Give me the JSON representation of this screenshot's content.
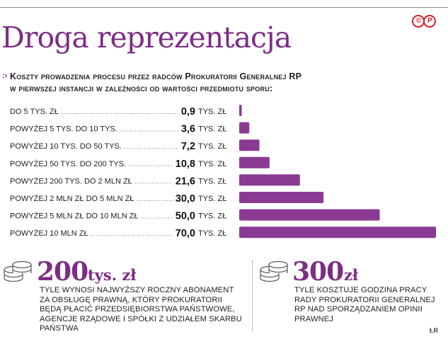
{
  "header": {
    "title": "Droga reprezentacja",
    "logo": "©P",
    "subtitle_line1": "Koszty prowadzenia procesu przez radców Prokuratorii Generalnej RP",
    "subtitle_line2": "w pierwszej instancji w zależności od wartości przedmiotu sporu:",
    "subtitle_icon": ":›"
  },
  "chart_data": {
    "type": "bar",
    "orientation": "horizontal",
    "categories": [
      "DO 5 TYS. ZŁ",
      "POWYŻEJ 5 TYS. DO 10 TYS.",
      "POWYŻEJ 10 TYS. DO 50 TYS.",
      "POWYŻEJ 50 TYS. DO 200 TYS.",
      "POWYŻEJ 200 TYS. DO 2 MLN ZŁ",
      "POWYŻEJ 2 MLN ZŁ DO 5 MLN ZŁ",
      "POWYŻEJ 5 MLN ZŁ DO 10 MLN ZŁ",
      "POWYŻEJ 10 MLN ZŁ"
    ],
    "values": [
      0.9,
      3.6,
      7.2,
      10.8,
      21.6,
      30.0,
      50.0,
      70.0
    ],
    "value_labels": [
      "0,9",
      "3,6",
      "7,2",
      "10,8",
      "21,6",
      "30,0",
      "50,0",
      "70,0"
    ],
    "unit": "TYS. ZŁ",
    "xlim": [
      0,
      70
    ],
    "bar_color": "#8a3a93"
  },
  "stats": [
    {
      "number": "200",
      "unit": "tys. zł",
      "desc_lines": [
        "TYLE WYNOSI NAJWYŻSZY ROCZNY ABONAMENT",
        "ZA OBSŁUGĘ PRAWNĄ, KTÓRY PROKURATORII",
        "BĘDĄ PŁACIĆ PRZEDSIĘBIORSTWA PAŃSTWOWE,",
        "AGENCJE RZĄDOWE I SPÓŁKI Z UDZIAŁEM SKARBU",
        "PAŃSTWA"
      ],
      "icon": "coins-icon"
    },
    {
      "number": "300",
      "unit": "zł",
      "desc_lines": [
        "TYLE KOSZTUJE GODZINA PRACY",
        "RADY PROKURATORII GENERALNEJ",
        "RP NAD SPORZĄDZANIEM OPINII",
        "PRAWNEJ"
      ],
      "icon": "coins-icon"
    }
  ],
  "credit": "ŁR",
  "colors": {
    "accent": "#7d2d85",
    "logo": "#d0202a"
  }
}
